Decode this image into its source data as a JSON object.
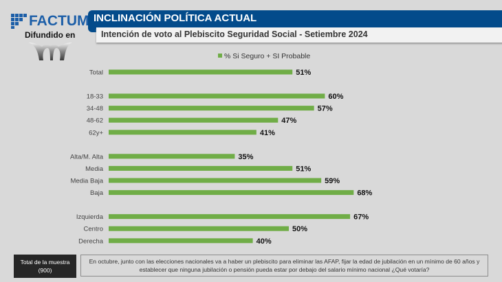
{
  "brand": {
    "logo_text": "FACTUM",
    "distributed_label": "Difundido en"
  },
  "header": {
    "title": "INCLINACIÓN POLÍTICA ACTUAL",
    "subtitle": "Intención de voto al Plebiscito Seguridad Social - Setiembre 2024"
  },
  "colors": {
    "header_blue": "#034b8b",
    "bar_green": "#70ad47",
    "brand_blue": "#1d5fa8"
  },
  "chart_data": {
    "type": "bar",
    "orientation": "horizontal",
    "title": "Intención de voto al Plebiscito Seguridad Social - Setiembre 2024",
    "legend": [
      "% Si Seguro + SI Probable"
    ],
    "legend_position": "top",
    "xlim": [
      0,
      100
    ],
    "grid": false,
    "groups": [
      {
        "name": "total",
        "categories": [
          "Total"
        ],
        "values": [
          51
        ]
      },
      {
        "name": "edad",
        "categories": [
          "18-33",
          "34-48",
          "48-62",
          "62y+"
        ],
        "values": [
          60,
          57,
          47,
          41
        ]
      },
      {
        "name": "nivel",
        "categories": [
          "Alta/M. Alta",
          "Media",
          "Media Baja",
          "Baja"
        ],
        "values": [
          35,
          51,
          59,
          68
        ]
      },
      {
        "name": "ideologia",
        "categories": [
          "Izquierda",
          "Centro",
          "Derecha"
        ],
        "values": [
          67,
          50,
          40
        ]
      }
    ],
    "value_suffix": "%"
  },
  "footer": {
    "sample_label": "Total de la muestra",
    "sample_size": "(900)",
    "question": "En octubre, junto con las elecciones nacionales va a haber un plebiscito para eliminar las AFAP, fijar la edad de jubilación en un mínimo de 60 años y establecer que ninguna jubilación o pensión pueda estar por debajo del salario mínimo nacional ¿Qué votaría?"
  }
}
